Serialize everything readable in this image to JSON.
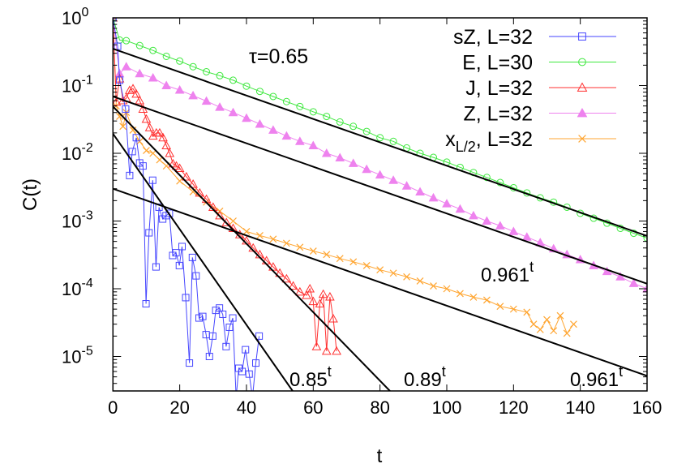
{
  "chart_data": {
    "type": "line",
    "xlabel": "t",
    "ylabel": "C(t)",
    "xlim": [
      0,
      160
    ],
    "ylim": [
      3e-06,
      1
    ],
    "yscale": "log",
    "grid": false,
    "legend_position": "top-right",
    "annotation": "τ=0.65",
    "x_ticks": [
      "0",
      "20",
      "40",
      "60",
      "80",
      "100",
      "120",
      "140",
      "160"
    ],
    "y_ticks": [
      {
        "base": "10",
        "exp": "0"
      },
      {
        "base": "10",
        "exp": "-1"
      },
      {
        "base": "10",
        "exp": "-2"
      },
      {
        "base": "10",
        "exp": "-3"
      },
      {
        "base": "10",
        "exp": "-4"
      },
      {
        "base": "10",
        "exp": "-5"
      }
    ],
    "series": [
      {
        "name": "sZ, L=32",
        "label_main": "sZ, L=32",
        "label_sub": "",
        "color": "#4646ff",
        "marker": "square",
        "x": [
          0,
          1.4,
          2,
          3.8,
          5,
          5.8,
          7,
          8,
          9,
          9.9,
          10.8,
          11.9,
          12.9,
          13.8,
          14.9,
          15.9,
          16.9,
          17.9,
          18.9,
          19.9,
          20.7,
          21.8,
          22.9,
          23.8,
          24.9,
          25.8,
          26.9,
          27.9,
          28.9,
          29.9,
          30.8,
          31.9,
          32.9,
          33.9,
          34.9,
          35.9,
          36.9,
          37.7,
          38.7,
          39.7,
          40.8,
          41.8,
          42.8,
          43.8
        ],
        "y": [
          1,
          0.38,
          0.12,
          0.045,
          0.0047,
          0.0106,
          0.017,
          0.0072,
          0.0065,
          6e-05,
          0.00067,
          0.004,
          0.00021,
          0.0016,
          0.00107,
          0.0012,
          0.0013,
          0.00031,
          0.00034,
          0.00022,
          0.00042,
          7.4e-05,
          8e-06,
          0.00029,
          0.000155,
          3.7e-05,
          3.9e-05,
          2.1e-05,
          1e-05,
          2e-05,
          4.8e-05,
          5.2e-05,
          4.2e-05,
          1.4e-05,
          2.7e-05,
          3.7e-05,
          2e-06,
          6.7e-06,
          6e-06,
          1.26e-05,
          5.5e-06,
          2e-06,
          8e-06,
          2e-05
        ]
      },
      {
        "name": "E, L=30",
        "label_main": "E, L=30",
        "label_sub": "",
        "color": "#3ee83e",
        "marker": "circle",
        "x": [
          0,
          2,
          4,
          8,
          12,
          16,
          20,
          24,
          28,
          32,
          36,
          40,
          44,
          48,
          52,
          56,
          60,
          64,
          68,
          72,
          76,
          80,
          84,
          88,
          92,
          96,
          100,
          104,
          108,
          112,
          116,
          120,
          124,
          128,
          132,
          136,
          140,
          144,
          148,
          152,
          156,
          160
        ],
        "y": [
          1,
          0.47,
          0.46,
          0.39,
          0.33,
          0.27,
          0.23,
          0.19,
          0.16,
          0.14,
          0.12,
          0.098,
          0.082,
          0.069,
          0.058,
          0.049,
          0.041,
          0.035,
          0.029,
          0.025,
          0.021,
          0.017,
          0.015,
          0.012,
          0.01,
          0.0087,
          0.0074,
          0.0062,
          0.0052,
          0.0044,
          0.0037,
          0.0031,
          0.0026,
          0.0022,
          0.0019,
          0.0016,
          0.0013,
          0.0011,
          0.00093,
          0.00078,
          0.00066,
          0.00056
        ]
      },
      {
        "name": "J, L=32",
        "label_main": "J, L=32",
        "label_sub": "",
        "color": "#ff3030",
        "marker": "triangle",
        "x": [
          0,
          1,
          2,
          3,
          4,
          5,
          6,
          7,
          8,
          9,
          10,
          11,
          12,
          13,
          14,
          15,
          16,
          17,
          18,
          19,
          20,
          22,
          24,
          26,
          28,
          30,
          32,
          34,
          36,
          38,
          40,
          42,
          44,
          46,
          48,
          50,
          52,
          54,
          56,
          58,
          59,
          60,
          61,
          62,
          63,
          64,
          65,
          66,
          67
        ],
        "y": [
          1,
          0.057,
          0.126,
          0.06,
          0.065,
          0.085,
          0.09,
          0.075,
          0.06,
          0.045,
          0.032,
          0.024,
          0.018,
          0.02,
          0.02,
          0.017,
          0.013,
          0.01,
          0.007,
          0.0065,
          0.006,
          0.0045,
          0.0035,
          0.0026,
          0.0021,
          0.0016,
          0.0012,
          0.00095,
          0.00078,
          0.00063,
          0.00051,
          0.0004,
          0.00032,
          0.00026,
          0.00021,
          0.00017,
          0.00014,
          0.00011,
          9e-05,
          8e-05,
          0.0001,
          6.5e-05,
          1.4e-05,
          6e-05,
          8.3e-05,
          1.2e-05,
          7.6e-05,
          3.6e-05,
          1.2e-05
        ]
      },
      {
        "name": "Z, L=32",
        "label_main": "Z, L=32",
        "label_sub": "",
        "color": "#ee82ee",
        "marker": "filled-triangle",
        "x": [
          0,
          2,
          4,
          8,
          12,
          16,
          20,
          24,
          28,
          32,
          36,
          40,
          44,
          48,
          52,
          56,
          60,
          64,
          68,
          72,
          76,
          80,
          84,
          88,
          92,
          96,
          100,
          104,
          108,
          112,
          116,
          120,
          124,
          128,
          132,
          136,
          140,
          144,
          148,
          152,
          156,
          160
        ],
        "y": [
          1,
          0.15,
          0.19,
          0.15,
          0.13,
          0.1,
          0.086,
          0.071,
          0.059,
          0.048,
          0.04,
          0.033,
          0.027,
          0.022,
          0.018,
          0.015,
          0.013,
          0.01,
          0.0086,
          0.0071,
          0.0058,
          0.0048,
          0.004,
          0.0033,
          0.0027,
          0.0022,
          0.0018,
          0.0015,
          0.0012,
          0.001,
          0.00085,
          0.0007,
          0.00058,
          0.00048,
          0.00039,
          0.00032,
          0.00027,
          0.00022,
          0.00018,
          0.00015,
          0.00012,
          0.0001
        ]
      },
      {
        "name": "x_{L/2}, L=32",
        "label_main": "x",
        "label_sub": "L/2",
        "label_rest": ", L=32",
        "color": "#ffa530",
        "marker": "cross",
        "x": [
          0,
          1,
          2,
          3,
          4,
          6,
          8,
          10,
          12,
          14,
          16,
          20,
          24,
          28,
          32,
          36,
          40,
          44,
          48,
          52,
          56,
          60,
          64,
          68,
          72,
          76,
          80,
          84,
          88,
          92,
          96,
          100,
          104,
          108,
          112,
          116,
          120,
          124,
          126,
          128,
          130,
          132,
          134,
          136,
          138
        ],
        "y": [
          1,
          0.05,
          0.035,
          0.025,
          0.04,
          0.022,
          0.015,
          0.011,
          0.01,
          0.008,
          0.0065,
          0.0039,
          0.0027,
          0.0019,
          0.0014,
          0.001,
          0.0007,
          0.00061,
          0.00054,
          0.00047,
          0.00041,
          0.00036,
          0.00032,
          0.00028,
          0.00025,
          0.00022,
          0.00019,
          0.00017,
          0.00015,
          0.00013,
          0.00011,
          0.0001,
          8.5e-05,
          7.5e-05,
          6.8e-05,
          5.5e-05,
          5e-05,
          4.5e-05,
          3e-05,
          2.5e-05,
          3.5e-05,
          2.4e-05,
          4e-05,
          2.2e-05,
          3e-05
        ]
      }
    ],
    "fits": [
      {
        "base": 0.961,
        "amplitude": 0.35,
        "label": "",
        "exp": ""
      },
      {
        "base": 0.961,
        "amplitude": 0.069,
        "label": "0.961",
        "exp": "t"
      },
      {
        "base": 0.961,
        "amplitude": 0.003,
        "label": "0.961",
        "exp": "t"
      },
      {
        "base": 0.89,
        "amplitude": 0.049,
        "label": "0.89",
        "exp": "t"
      },
      {
        "base": 0.85,
        "amplitude": 0.0195,
        "label": "0.85",
        "exp": "t"
      }
    ]
  }
}
